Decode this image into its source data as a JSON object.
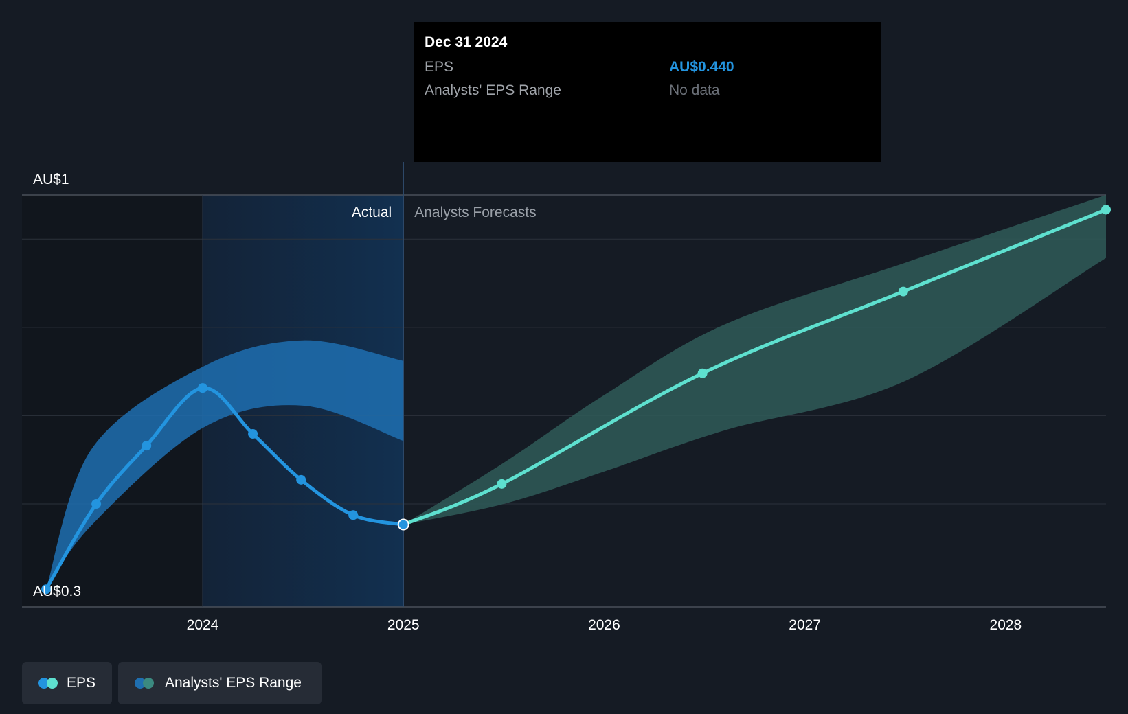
{
  "chart_data": {
    "type": "line",
    "title": "",
    "y_axis": {
      "top_label": "AU$1",
      "bottom_label": "AU$0.3",
      "ylim": [
        0.3,
        1.0
      ]
    },
    "x_axis": {
      "tick_labels": [
        "2024",
        "2025",
        "2026",
        "2027",
        "2028"
      ],
      "xlim": [
        2023.1,
        2028.5
      ]
    },
    "divider": {
      "x": 2025.0,
      "left_label": "Actual",
      "right_label": "Analysts Forecasts"
    },
    "series": [
      {
        "name": "EPS",
        "kind": "actual",
        "color": "#2394df",
        "points": [
          {
            "x": 2023.22,
            "y": 0.33
          },
          {
            "x": 2023.47,
            "y": 0.475
          },
          {
            "x": 2023.72,
            "y": 0.574
          },
          {
            "x": 2024.0,
            "y": 0.672
          },
          {
            "x": 2024.25,
            "y": 0.594
          },
          {
            "x": 2024.49,
            "y": 0.516
          },
          {
            "x": 2024.75,
            "y": 0.456
          },
          {
            "x": 2025.0,
            "y": 0.44
          }
        ]
      },
      {
        "name": "EPS",
        "kind": "forecast",
        "color": "#5ee0cf",
        "points": [
          {
            "x": 2025.0,
            "y": 0.44
          },
          {
            "x": 2025.49,
            "y": 0.509
          },
          {
            "x": 2026.49,
            "y": 0.697
          },
          {
            "x": 2027.49,
            "y": 0.836
          },
          {
            "x": 2028.5,
            "y": 0.975
          }
        ]
      }
    ],
    "ranges": [
      {
        "name": "Analysts' EPS Range",
        "kind": "actual",
        "color": "#1f6fb0",
        "upper": [
          {
            "x": 2023.22,
            "y": 0.33
          },
          {
            "x": 2023.45,
            "y": 0.57
          },
          {
            "x": 2024.0,
            "y": 0.708
          },
          {
            "x": 2024.5,
            "y": 0.753
          },
          {
            "x": 2025.0,
            "y": 0.718
          }
        ],
        "lower": [
          {
            "x": 2023.22,
            "y": 0.33
          },
          {
            "x": 2023.45,
            "y": 0.44
          },
          {
            "x": 2024.0,
            "y": 0.604
          },
          {
            "x": 2024.5,
            "y": 0.642
          },
          {
            "x": 2025.0,
            "y": 0.582
          }
        ]
      },
      {
        "name": "Analysts' EPS Range",
        "kind": "forecast",
        "color": "#2f5a58",
        "upper": [
          {
            "x": 2025.0,
            "y": 0.44
          },
          {
            "x": 2025.5,
            "y": 0.545
          },
          {
            "x": 2026.0,
            "y": 0.66
          },
          {
            "x": 2026.6,
            "y": 0.78
          },
          {
            "x": 2027.5,
            "y": 0.885
          },
          {
            "x": 2028.5,
            "y": 1.0
          }
        ],
        "lower": [
          {
            "x": 2025.0,
            "y": 0.44
          },
          {
            "x": 2025.5,
            "y": 0.475
          },
          {
            "x": 2026.0,
            "y": 0.53
          },
          {
            "x": 2026.6,
            "y": 0.6
          },
          {
            "x": 2027.5,
            "y": 0.684
          },
          {
            "x": 2028.5,
            "y": 0.893
          }
        ]
      }
    ],
    "tooltip": {
      "date": "Dec 31 2024",
      "rows": [
        {
          "label": "EPS",
          "value": "AU$0.440",
          "value_color": "#2394df"
        },
        {
          "label": "Analysts' EPS Range",
          "value": "No data",
          "value_color": "#6b7078"
        }
      ]
    },
    "legend": [
      {
        "label": "EPS",
        "colors": [
          "#2394df",
          "#5ee0cf"
        ]
      },
      {
        "label": "Analysts' EPS Range",
        "colors": [
          "#1f6fb0",
          "#3b8a80"
        ]
      }
    ],
    "grid": true
  }
}
